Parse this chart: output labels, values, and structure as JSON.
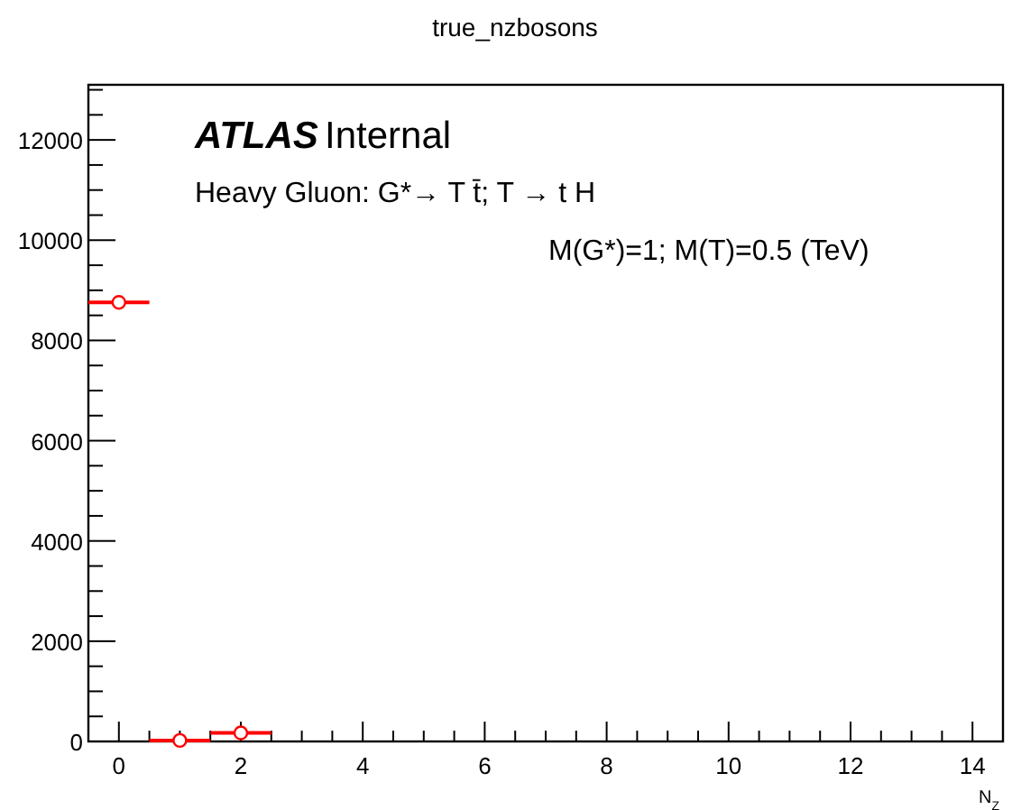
{
  "chart_data": {
    "type": "scatter",
    "title": "true_nzbosons",
    "xlabel": "N$_{Z}$",
    "annotations": [
      "ATLAS",
      "Internal",
      "Heavy Gluon: G*→ T t̄; T → t H",
      "M(G*)=1; M(T)=0.5 (TeV)"
    ],
    "x": [
      0,
      1,
      2
    ],
    "series": [
      {
        "color": "#ff0000",
        "values": [
          8760,
          20,
          170
        ],
        "xerrors": [
          0.5,
          0.5,
          0.5
        ]
      }
    ],
    "marker": "circle",
    "xlim": [
      -0.5,
      14.5
    ],
    "xticks": [
      0,
      {
        "value": 0.5,
        "label": null
      },
      {
        "value": 1,
        "label": null
      },
      {
        "value": 1.5,
        "label": null
      },
      2,
      {
        "value": 2.5,
        "label": null
      },
      {
        "value": 3,
        "label": null
      },
      {
        "value": 3.5,
        "label": null
      },
      4,
      {
        "value": 4.5,
        "label": null
      },
      {
        "value": 5,
        "label": null
      },
      {
        "value": 5.5,
        "label": null
      },
      6,
      {
        "value": 6.5,
        "label": null
      },
      {
        "value": 7,
        "label": null
      },
      {
        "value": 7.5,
        "label": null
      },
      8,
      {
        "value": 8.5,
        "label": null
      },
      {
        "value": 9,
        "label": null
      },
      {
        "value": 9.5,
        "label": null
      },
      10,
      {
        "value": 10.5,
        "label": null
      },
      {
        "value": 11,
        "label": null
      },
      {
        "value": 11.5,
        "label": null
      },
      12,
      {
        "value": 12.5,
        "label": null
      },
      {
        "value": 13,
        "label": null
      },
      {
        "value": 13.5,
        "label": null
      },
      14
    ],
    "ylim": [
      0,
      13100
    ],
    "yticks": [
      0,
      {
        "value": 500,
        "label": null
      },
      {
        "value": 1000,
        "label": null
      },
      {
        "value": 1500,
        "label": null
      },
      2000,
      {
        "value": 2500,
        "label": null
      },
      {
        "value": 3000,
        "label": null
      },
      {
        "value": 3500,
        "label": null
      },
      4000,
      {
        "value": 4500,
        "label": null
      },
      {
        "value": 5000,
        "label": null
      },
      {
        "value": 5500,
        "label": null
      },
      6000,
      {
        "value": 6500,
        "label": null
      },
      {
        "value": 7000,
        "label": null
      },
      {
        "value": 7500,
        "label": null
      },
      8000,
      {
        "value": 8500,
        "label": null
      },
      {
        "value": 9000,
        "label": null
      },
      {
        "value": 9500,
        "label": null
      },
      10000,
      {
        "value": 10500,
        "label": null
      },
      {
        "value": 11000,
        "label": null
      },
      {
        "value": 11500,
        "label": null
      },
      12000,
      {
        "value": 12500,
        "label": null
      },
      {
        "value": 13000,
        "label": null
      }
    ],
    "grid": false
  }
}
